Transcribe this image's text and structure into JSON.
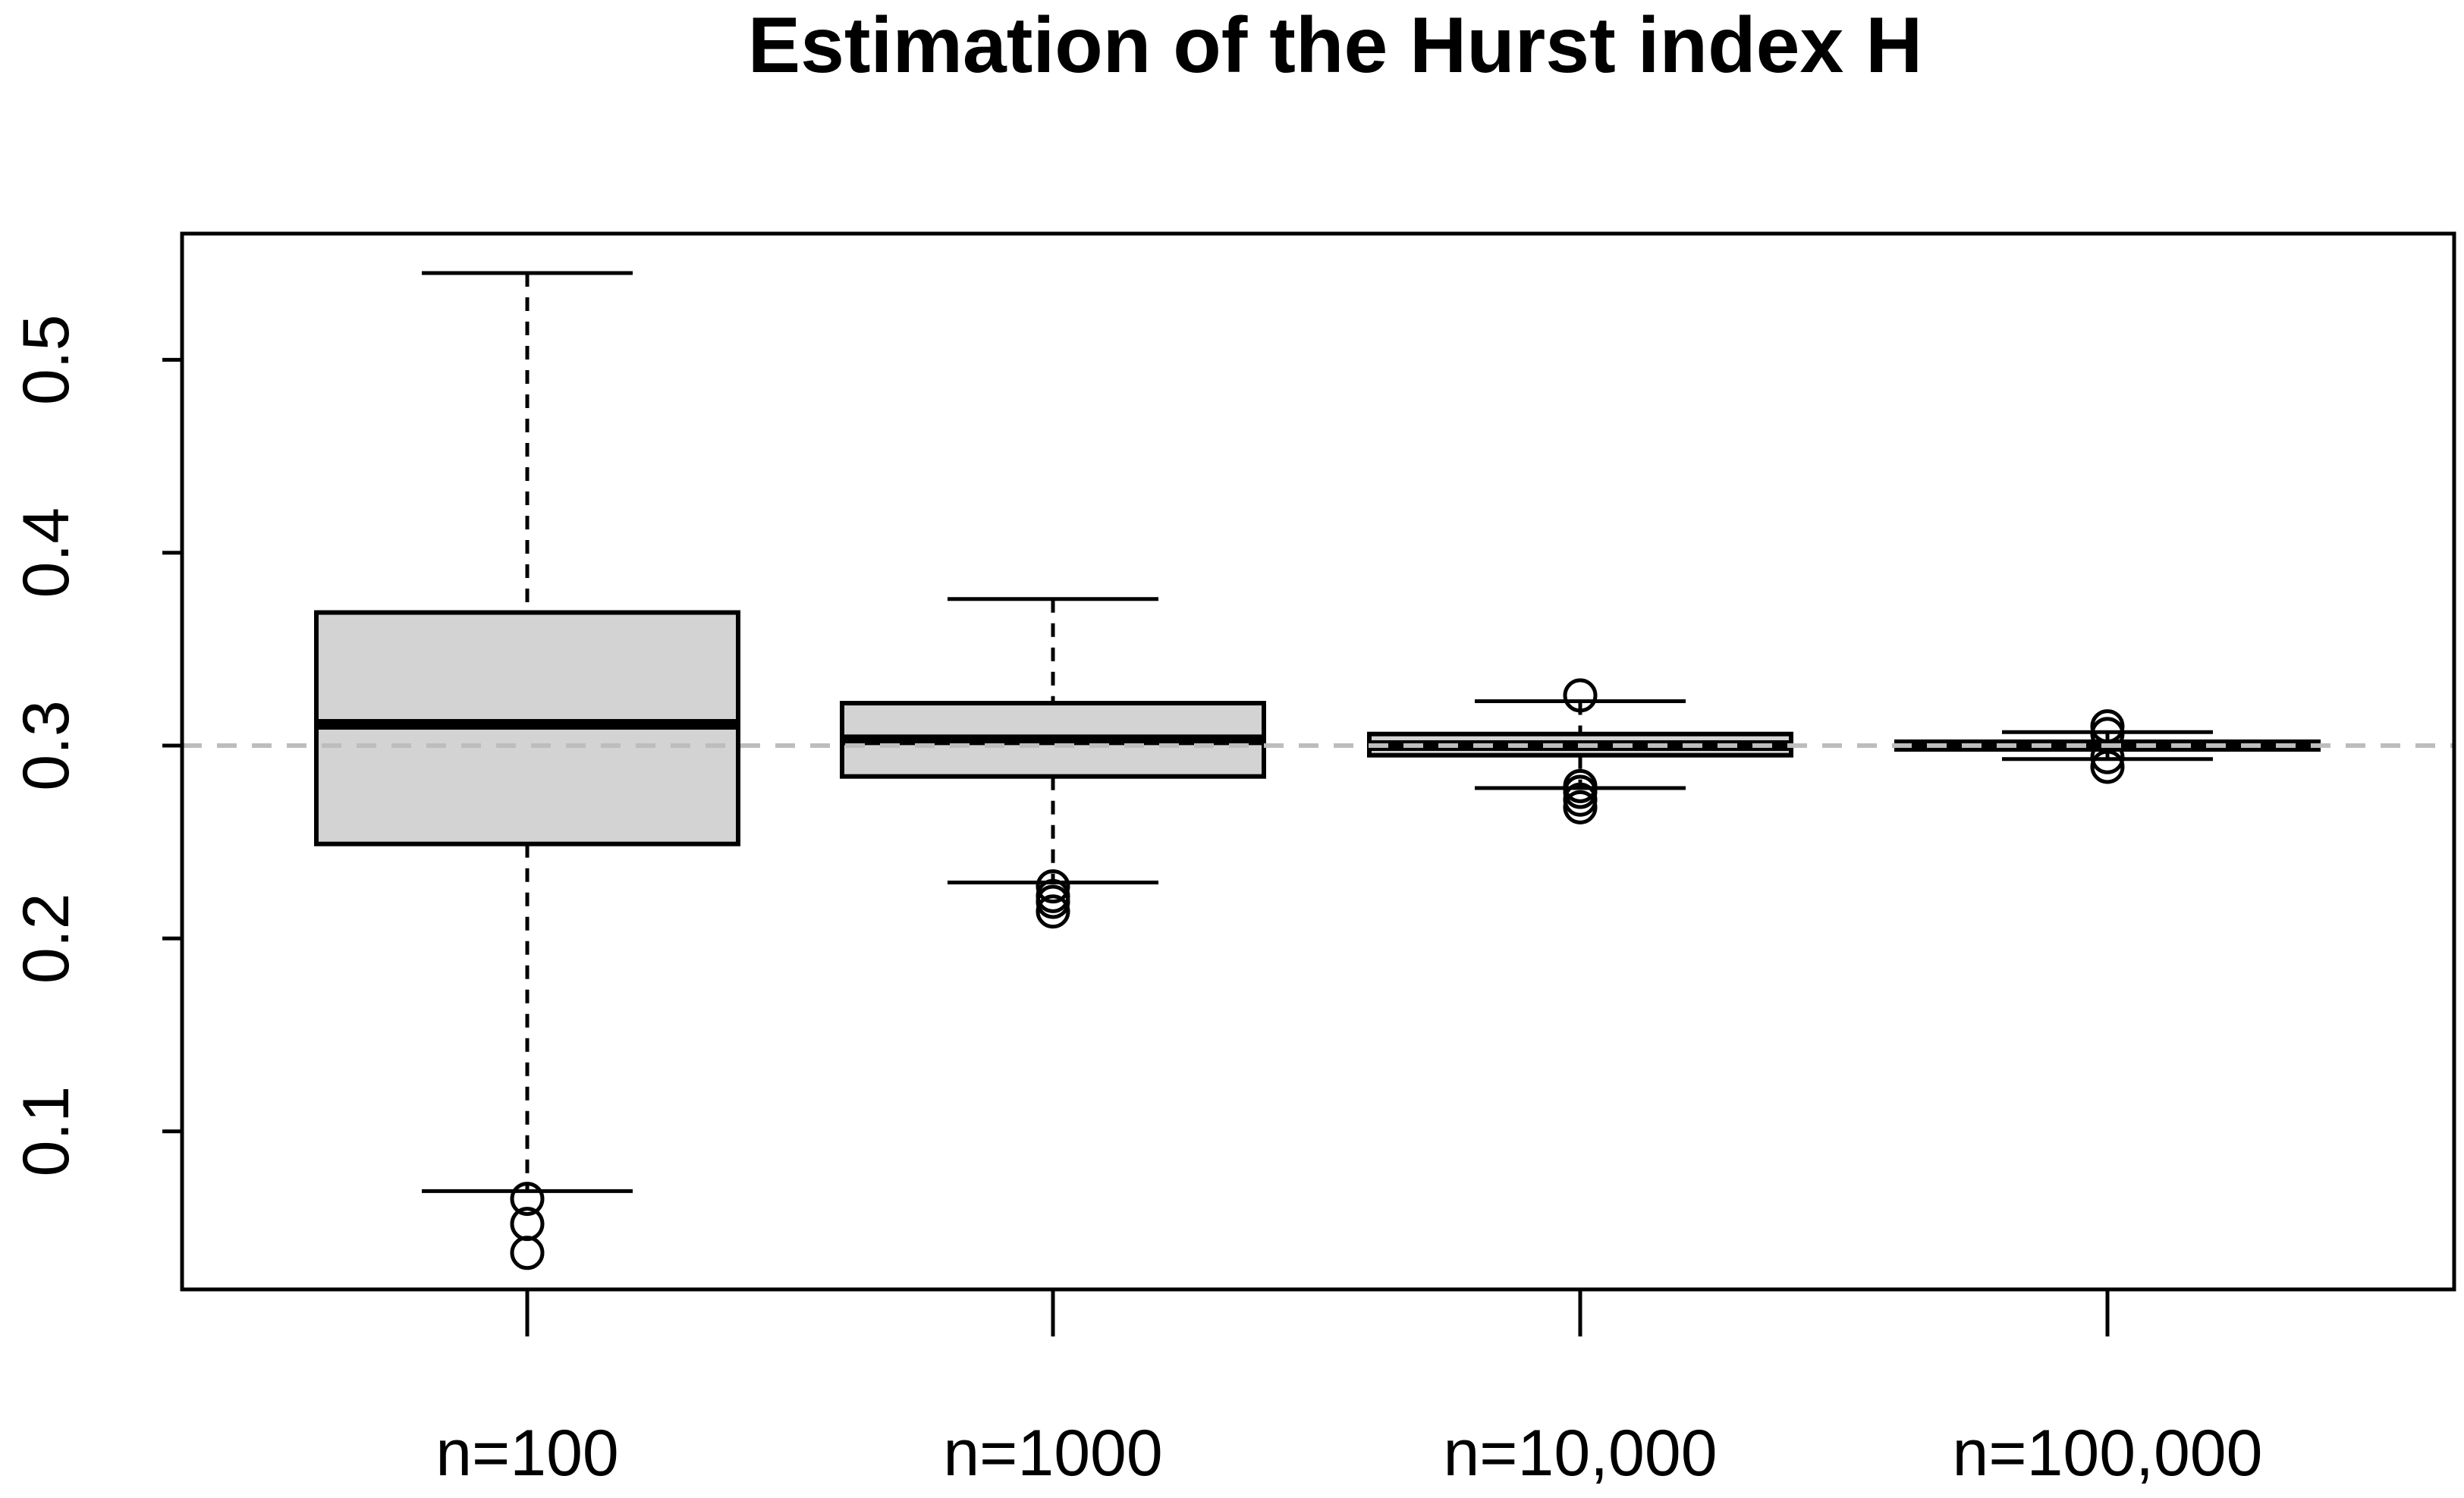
{
  "chart_data": {
    "type": "box",
    "title": "Estimation of the Hurst index H",
    "xlabel": "",
    "ylabel": "",
    "ylim": [
      0.017,
      0.565
    ],
    "yticks": [
      0.1,
      0.2,
      0.3,
      0.4,
      0.5
    ],
    "ytick_labels": [
      "0.1",
      "0.2",
      "0.3",
      "0.4",
      "0.5"
    ],
    "categories": [
      "n=100",
      "n=1000",
      "n=10,000",
      "n=100,000"
    ],
    "reference_line": {
      "y": 0.3,
      "style": "dashed",
      "color": "#bdbdbd"
    },
    "grid": false,
    "legend": "none",
    "colors": {
      "box_fill": "#d3d3d3",
      "stroke": "#000000",
      "reference": "#bdbdbd"
    },
    "boxes": [
      {
        "category": "n=100",
        "whisker_low": 0.069,
        "q1": 0.249,
        "median": 0.311,
        "q3": 0.369,
        "whisker_high": 0.545,
        "outliers": [
          0.065,
          0.052,
          0.037
        ]
      },
      {
        "category": "n=1000",
        "whisker_low": 0.229,
        "q1": 0.284,
        "median": 0.303,
        "q3": 0.322,
        "whisker_high": 0.376,
        "outliers": [
          0.227,
          0.222,
          0.219,
          0.214
        ]
      },
      {
        "category": "n=10,000",
        "whisker_low": 0.278,
        "q1": 0.295,
        "median": 0.3,
        "q3": 0.306,
        "whisker_high": 0.323,
        "outliers": [
          0.326,
          0.279,
          0.276,
          0.272,
          0.268
        ]
      },
      {
        "category": "n=100,000",
        "whisker_low": 0.293,
        "q1": 0.298,
        "median": 0.3,
        "q3": 0.302,
        "whisker_high": 0.307,
        "outliers": [
          0.31,
          0.306,
          0.294,
          0.289
        ]
      }
    ]
  }
}
